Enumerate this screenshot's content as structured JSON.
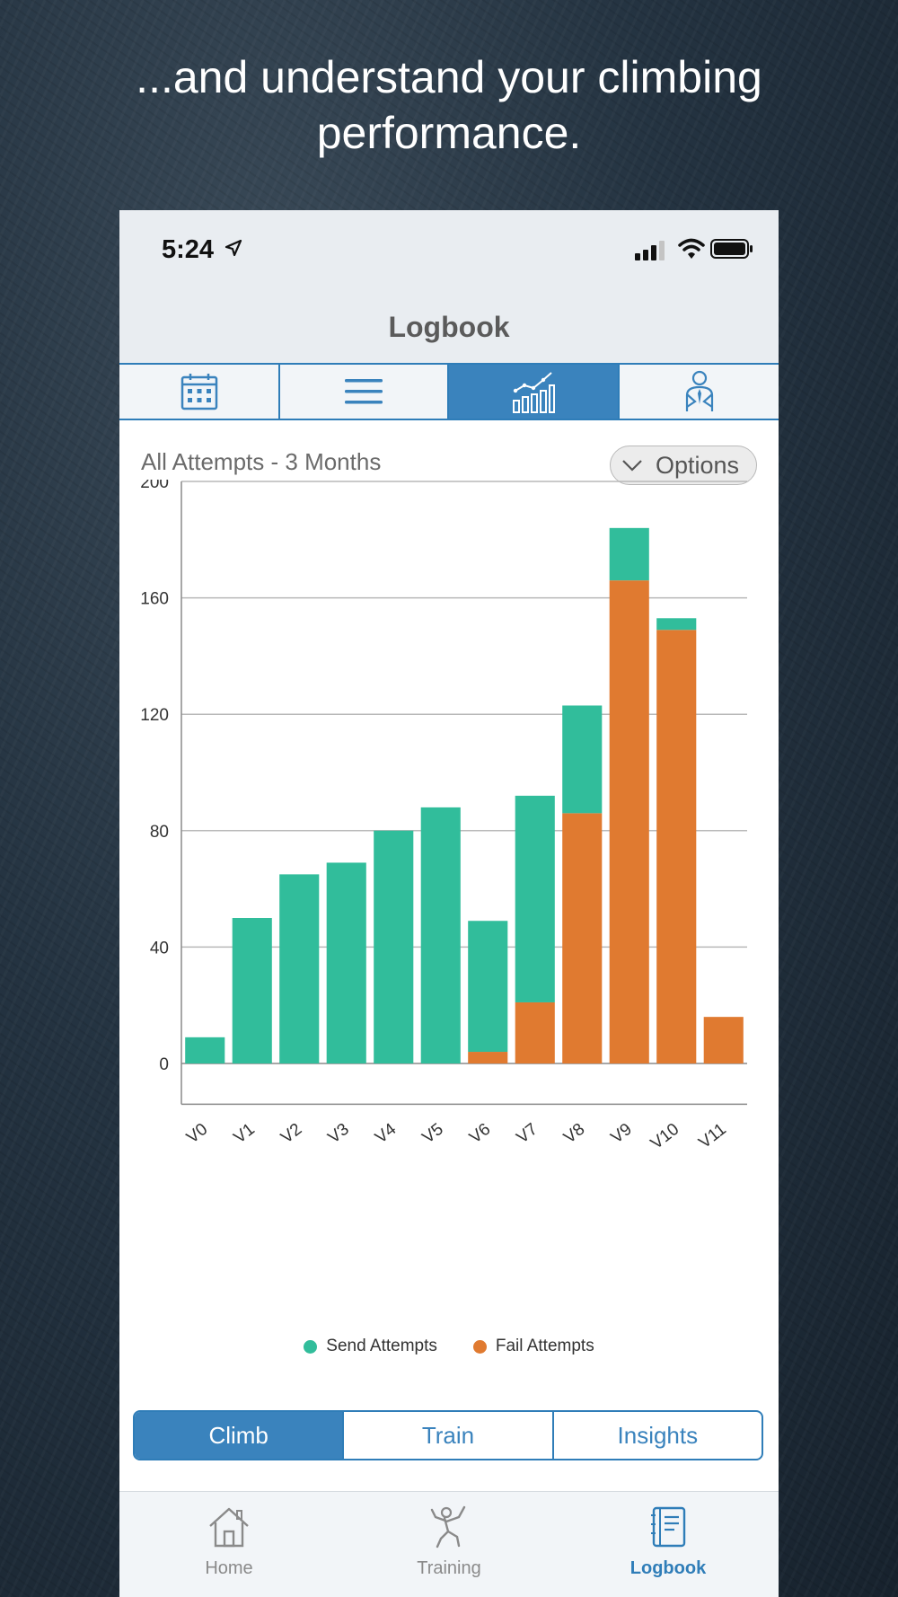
{
  "headline": {
    "line1": "...and understand your climbing",
    "line2": "performance."
  },
  "status_bar": {
    "time": "5:24"
  },
  "nav": {
    "title": "Logbook"
  },
  "top_tabs": [
    {
      "icon": "calendar-icon",
      "active": false
    },
    {
      "icon": "list-icon",
      "active": false
    },
    {
      "icon": "chart-icon",
      "active": true
    },
    {
      "icon": "coach-icon",
      "active": false
    }
  ],
  "chart_header": {
    "title": "All Attempts - 3 Months",
    "options_label": "Options"
  },
  "chart_data": {
    "type": "bar",
    "stacked": true,
    "categories": [
      "V0",
      "V1",
      "V2",
      "V3",
      "V4",
      "V5",
      "V6",
      "V7",
      "V8",
      "V9",
      "V10",
      "V11"
    ],
    "series": [
      {
        "name": "Fail Attempts",
        "color": "#e07a30",
        "values": [
          0,
          0,
          0,
          0,
          0,
          0,
          4,
          21,
          86,
          166,
          149,
          16
        ]
      },
      {
        "name": "Send Attempts",
        "color": "#31bd9b",
        "values": [
          9,
          50,
          65,
          69,
          80,
          88,
          45,
          71,
          37,
          18,
          4,
          0
        ]
      }
    ],
    "y_ticks": [
      0,
      40,
      80,
      120,
      160,
      200
    ],
    "ylim": [
      -14,
      200
    ],
    "grid": true,
    "legend": [
      "Send Attempts",
      "Fail Attempts"
    ],
    "legend_position": "bottom"
  },
  "bottom_segment": [
    {
      "label": "Climb",
      "active": true
    },
    {
      "label": "Train",
      "active": false
    },
    {
      "label": "Insights",
      "active": false
    }
  ],
  "tab_bar": [
    {
      "label": "Home",
      "icon": "home-icon",
      "active": false
    },
    {
      "label": "Training",
      "icon": "climber-icon",
      "active": false
    },
    {
      "label": "Logbook",
      "icon": "logbook-icon",
      "active": true
    }
  ]
}
